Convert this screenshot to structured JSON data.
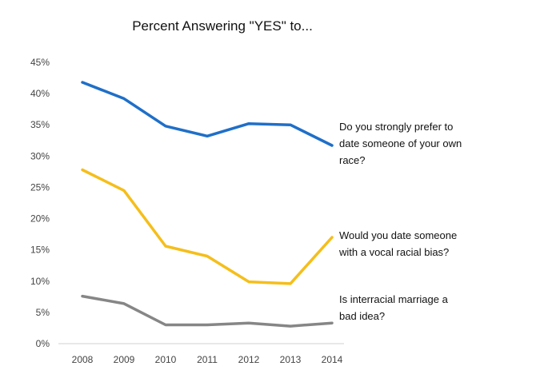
{
  "chart_data": {
    "type": "line",
    "title": "Percent Answering \"YES\" to...",
    "xlabel": "",
    "ylabel": "",
    "categories": [
      "2008",
      "2009",
      "2010",
      "2011",
      "2012",
      "2013",
      "2014"
    ],
    "ylim": [
      0,
      45
    ],
    "y_ticks": [
      "0%",
      "5%",
      "10%",
      "15%",
      "20%",
      "25%",
      "30%",
      "35%",
      "40%",
      "45%"
    ],
    "grid": false,
    "legend": "labels at right end of each line",
    "series": [
      {
        "name_lines": [
          "Do you strongly prefer to",
          "date someone of your own",
          "race?"
        ],
        "color": "#1f6fc8",
        "values": [
          41.8,
          39.2,
          34.8,
          33.2,
          35.2,
          35.0,
          31.7
        ]
      },
      {
        "name_lines": [
          "Would you date someone",
          "with a vocal racial bias?"
        ],
        "color": "#f5be1a",
        "values": [
          27.8,
          24.5,
          15.6,
          14.0,
          9.9,
          9.6,
          17.0
        ]
      },
      {
        "name_lines": [
          "Is interracial marriage a",
          "bad idea?"
        ],
        "color": "#868686",
        "values": [
          7.6,
          6.4,
          3.0,
          3.0,
          3.3,
          2.8,
          3.3
        ]
      }
    ]
  }
}
